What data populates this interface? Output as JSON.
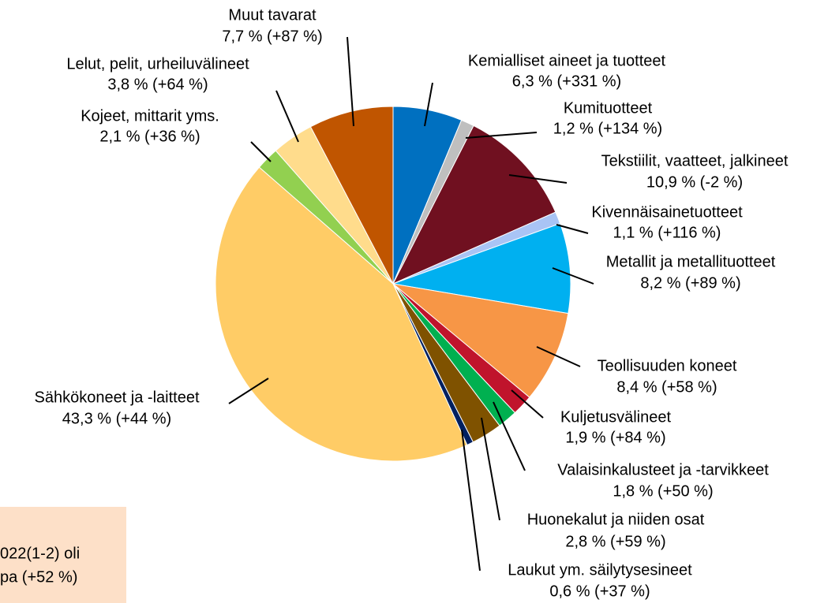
{
  "chart_data": {
    "type": "pie",
    "categories": [
      "Kemialliset aineet ja tuotteet",
      "Kumituotteet",
      "Tekstiilit, vaatteet, jalkineet",
      "Kivennäisainetuotteet",
      "Metallit ja metallituotteet",
      "Teollisuuden koneet",
      "Kuljetusvälineet",
      "Valaisinkalusteet ja -tarvikkeet",
      "Huonekalut ja niiden osat",
      "Laukut ym. säilytysesineet",
      "Sähkökoneet ja -laitteet",
      "Kojeet, mittarit yms.",
      "Lelut, pelit, urheiluvälineet",
      "Muut tavarat"
    ],
    "values": [
      6.3,
      1.2,
      10.9,
      1.1,
      8.2,
      8.4,
      1.9,
      1.8,
      2.8,
      0.6,
      43.3,
      2.1,
      3.8,
      7.7
    ],
    "value_labels": [
      "6,3 % (+331 %)",
      "1,2 % (+134 %)",
      "10,9 % (-2 %)",
      "1,1 % (+116 %)",
      "8,2 % (+89 %)",
      "8,4 % (+58 %)",
      "1,9 % (+84 %)",
      "1,8 % (+50 %)",
      "2,8 % (+59 %)",
      "0,6 % (+37 %)",
      "43,3 % (+44 %)",
      "2,1 % (+36 %)",
      "3,8 % (+64 %)",
      "7,7 % (+87 %)"
    ],
    "colors": [
      "#0070c0",
      "#bfbfbf",
      "#701020",
      "#a9c4f5",
      "#00b0f0",
      "#f79646",
      "#c0142c",
      "#00b050",
      "#7f5200",
      "#002060",
      "#ffcc66",
      "#92d050",
      "#ffdc8c",
      "#c05500"
    ],
    "annotation": [
      "022(1-2) oli",
      "pa (+52 %)"
    ]
  }
}
